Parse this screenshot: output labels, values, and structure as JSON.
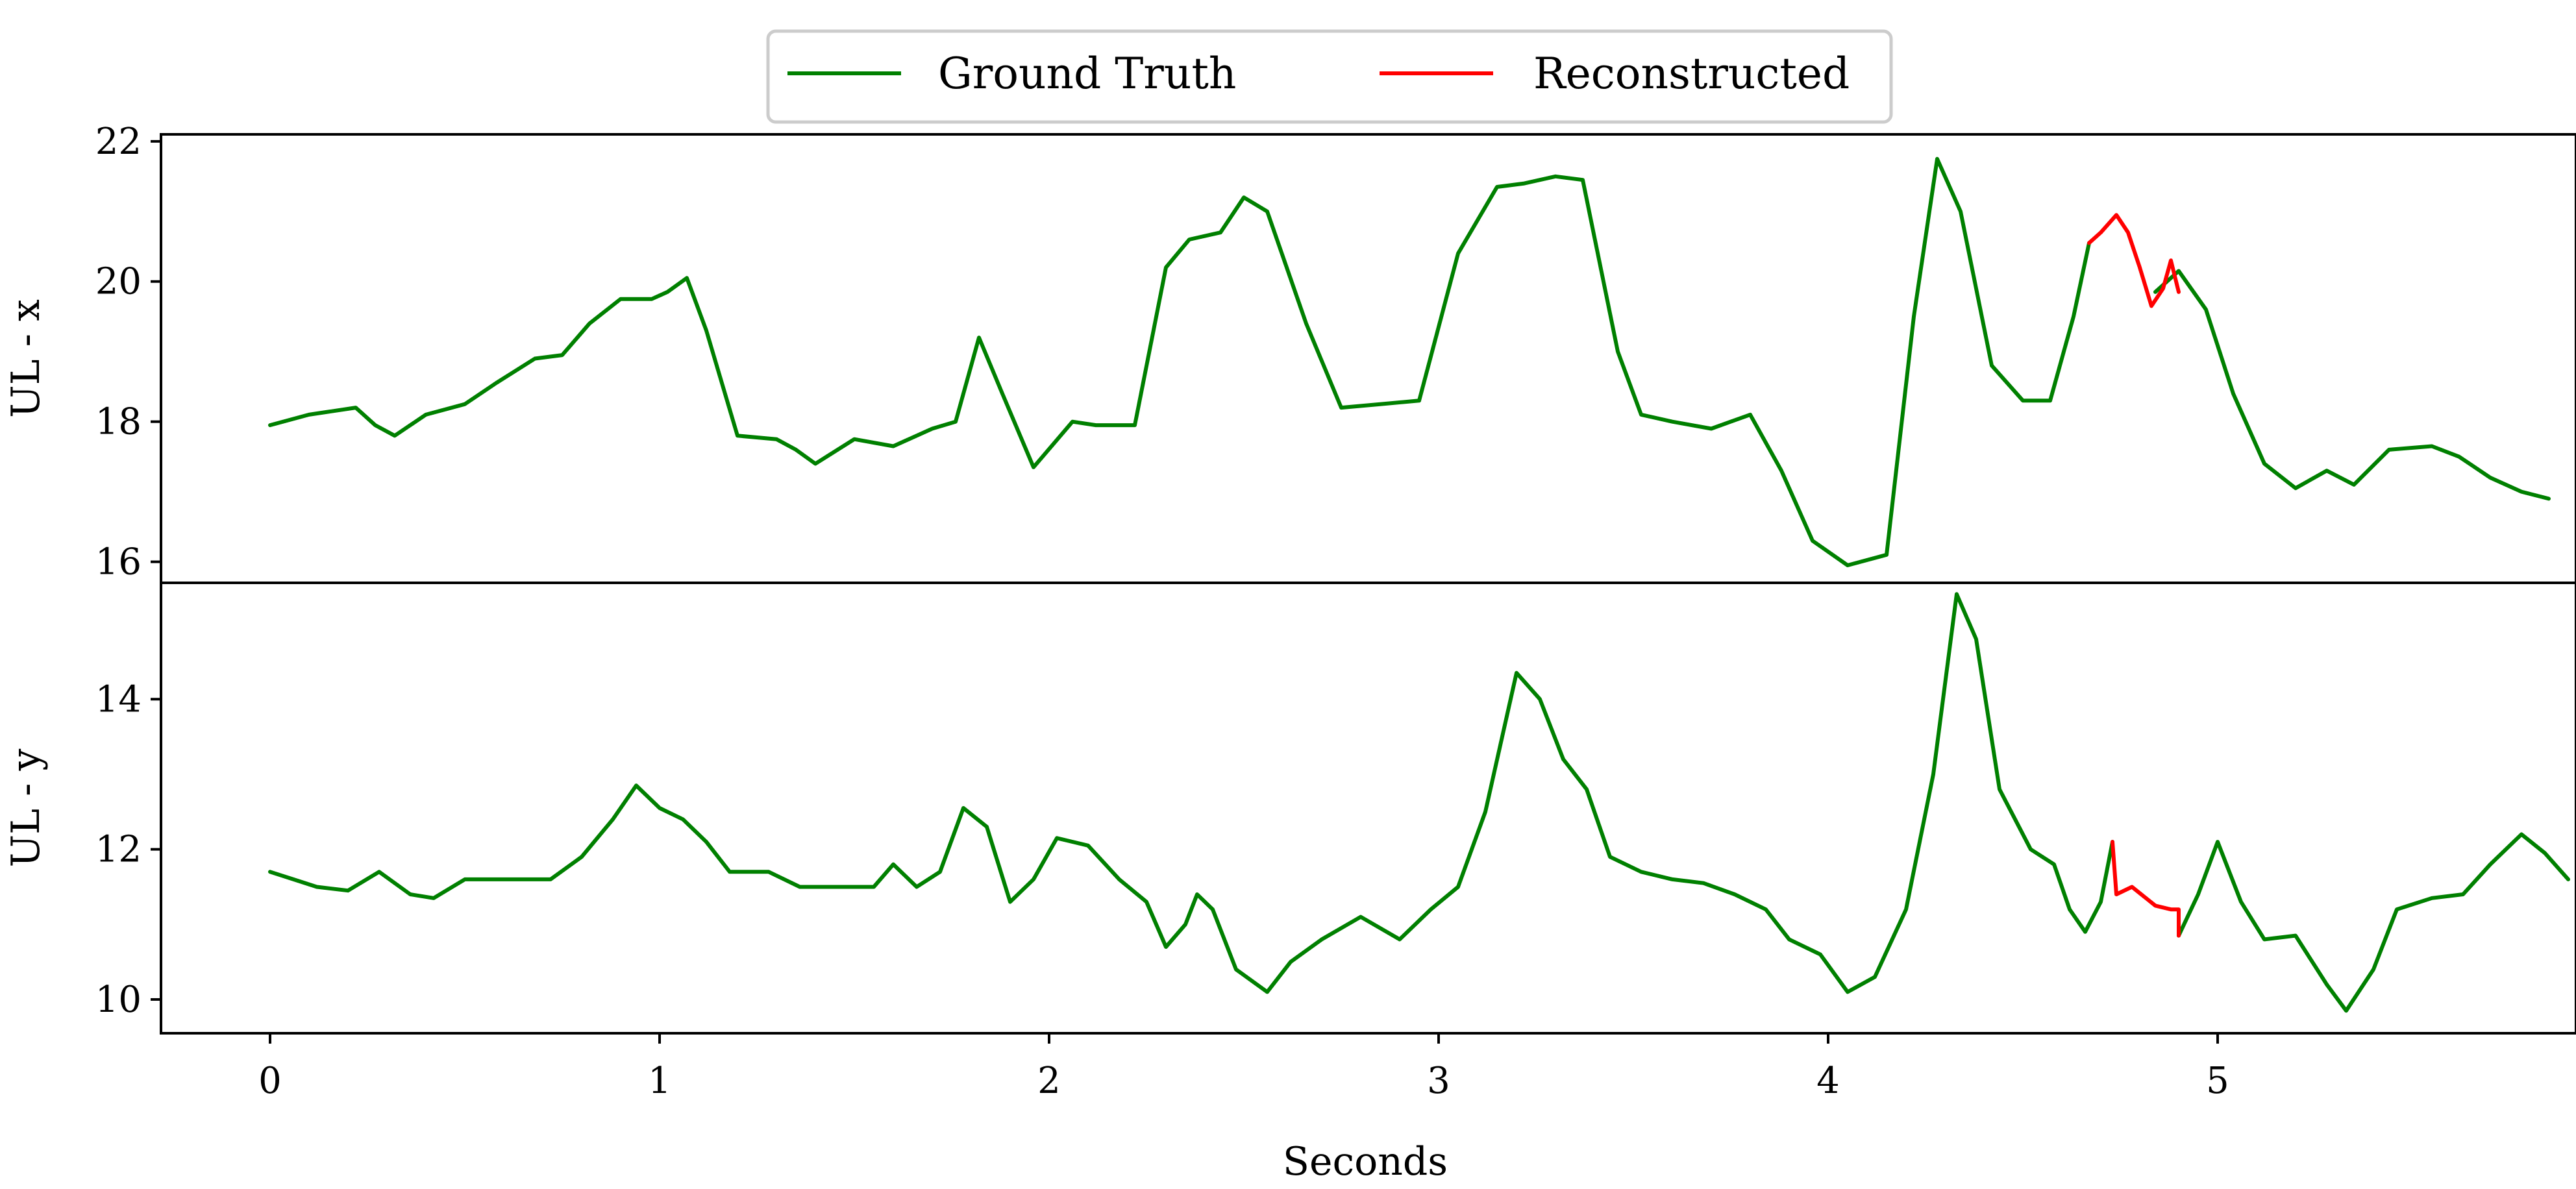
{
  "chart_data": {
    "type": "line",
    "xlabel": "Seconds",
    "xlim": [
      -0.28,
      5.92
    ],
    "xticks": [
      0,
      1,
      2,
      3,
      4,
      5
    ],
    "legend": {
      "placement": "top-center",
      "entries": [
        {
          "label": "Ground Truth",
          "color": "#008000"
        },
        {
          "label": "Reconstructed",
          "color": "#ff0000"
        }
      ]
    },
    "subplots": [
      {
        "ylabel": "UL - x",
        "ylim": [
          15.7,
          22.1
        ],
        "yticks": [
          16,
          18,
          20,
          22
        ],
        "series": [
          {
            "name": "Ground Truth",
            "color": "#008000",
            "segments": [
              [
                [
                  0,
                  17.95
                ],
                [
                  0.1,
                  18.1
                ],
                [
                  0.22,
                  18.2
                ],
                [
                  0.27,
                  17.95
                ],
                [
                  0.32,
                  17.8
                ],
                [
                  0.4,
                  18.1
                ],
                [
                  0.5,
                  18.25
                ],
                [
                  0.58,
                  18.55
                ],
                [
                  0.68,
                  18.9
                ],
                [
                  0.75,
                  18.95
                ],
                [
                  0.82,
                  19.4
                ],
                [
                  0.9,
                  19.75
                ],
                [
                  0.98,
                  19.75
                ],
                [
                  1.02,
                  19.85
                ],
                [
                  1.07,
                  20.05
                ],
                [
                  1.12,
                  19.3
                ],
                [
                  1.2,
                  17.8
                ],
                [
                  1.3,
                  17.75
                ],
                [
                  1.35,
                  17.6
                ],
                [
                  1.4,
                  17.4
                ],
                [
                  1.5,
                  17.75
                ],
                [
                  1.6,
                  17.65
                ],
                [
                  1.7,
                  17.9
                ],
                [
                  1.76,
                  18.0
                ],
                [
                  1.82,
                  19.2
                ],
                [
                  1.88,
                  18.4
                ],
                [
                  1.96,
                  17.35
                ],
                [
                  2.06,
                  18.0
                ],
                [
                  2.12,
                  17.95
                ],
                [
                  2.22,
                  17.95
                ],
                [
                  2.3,
                  20.2
                ],
                [
                  2.36,
                  20.6
                ],
                [
                  2.44,
                  20.7
                ],
                [
                  2.5,
                  21.2
                ],
                [
                  2.56,
                  21.0
                ],
                [
                  2.66,
                  19.4
                ],
                [
                  2.75,
                  18.2
                ],
                [
                  2.85,
                  18.25
                ],
                [
                  2.95,
                  18.3
                ],
                [
                  3.05,
                  20.4
                ],
                [
                  3.15,
                  21.35
                ],
                [
                  3.22,
                  21.4
                ],
                [
                  3.3,
                  21.5
                ],
                [
                  3.37,
                  21.45
                ],
                [
                  3.46,
                  19.0
                ],
                [
                  3.52,
                  18.1
                ],
                [
                  3.6,
                  18.0
                ],
                [
                  3.7,
                  17.9
                ],
                [
                  3.8,
                  18.1
                ],
                [
                  3.88,
                  17.3
                ],
                [
                  3.96,
                  16.3
                ],
                [
                  4.05,
                  15.95
                ],
                [
                  4.15,
                  16.1
                ],
                [
                  4.22,
                  19.5
                ],
                [
                  4.28,
                  21.75
                ],
                [
                  4.34,
                  21.0
                ],
                [
                  4.42,
                  18.8
                ],
                [
                  4.5,
                  18.3
                ],
                [
                  4.57,
                  18.3
                ],
                [
                  4.63,
                  19.5
                ],
                [
                  4.67,
                  20.55
                ]
              ],
              [
                [
                  4.84,
                  19.85
                ],
                [
                  4.9,
                  20.15
                ],
                [
                  4.97,
                  19.6
                ],
                [
                  5.04,
                  18.4
                ],
                [
                  5.12,
                  17.4
                ],
                [
                  5.2,
                  17.05
                ],
                [
                  5.28,
                  17.3
                ],
                [
                  5.35,
                  17.1
                ],
                [
                  5.44,
                  17.6
                ],
                [
                  5.55,
                  17.65
                ],
                [
                  5.62,
                  17.5
                ],
                [
                  5.7,
                  17.2
                ],
                [
                  5.78,
                  17.0
                ],
                [
                  5.85,
                  16.9
                ]
              ]
            ]
          },
          {
            "name": "Reconstructed",
            "color": "#ff0000",
            "segments": [
              [
                [
                  4.67,
                  20.55
                ],
                [
                  4.7,
                  20.7
                ],
                [
                  4.74,
                  20.95
                ],
                [
                  4.77,
                  20.7
                ],
                [
                  4.8,
                  20.2
                ],
                [
                  4.83,
                  19.65
                ],
                [
                  4.86,
                  19.9
                ],
                [
                  4.88,
                  20.3
                ],
                [
                  4.9,
                  19.85
                ]
              ]
            ]
          }
        ]
      },
      {
        "ylabel": "UL - y",
        "ylim": [
          9.55,
          15.55
        ],
        "yticks": [
          10,
          12,
          14
        ],
        "series": [
          {
            "name": "Ground Truth",
            "color": "#008000",
            "segments": [
              [
                [
                  0,
                  11.7
                ],
                [
                  0.06,
                  11.6
                ],
                [
                  0.12,
                  11.5
                ],
                [
                  0.2,
                  11.45
                ],
                [
                  0.28,
                  11.7
                ],
                [
                  0.36,
                  11.4
                ],
                [
                  0.42,
                  11.35
                ],
                [
                  0.5,
                  11.6
                ],
                [
                  0.6,
                  11.6
                ],
                [
                  0.72,
                  11.6
                ],
                [
                  0.8,
                  11.9
                ],
                [
                  0.88,
                  12.4
                ],
                [
                  0.94,
                  12.85
                ],
                [
                  1.0,
                  12.55
                ],
                [
                  1.06,
                  12.4
                ],
                [
                  1.12,
                  12.1
                ],
                [
                  1.18,
                  11.7
                ],
                [
                  1.28,
                  11.7
                ],
                [
                  1.36,
                  11.5
                ],
                [
                  1.45,
                  11.5
                ],
                [
                  1.55,
                  11.5
                ],
                [
                  1.6,
                  11.8
                ],
                [
                  1.66,
                  11.5
                ],
                [
                  1.72,
                  11.7
                ],
                [
                  1.78,
                  12.55
                ],
                [
                  1.84,
                  12.3
                ],
                [
                  1.9,
                  11.3
                ],
                [
                  1.96,
                  11.6
                ],
                [
                  2.02,
                  12.15
                ],
                [
                  2.1,
                  12.05
                ],
                [
                  2.18,
                  11.6
                ],
                [
                  2.25,
                  11.3
                ],
                [
                  2.3,
                  10.7
                ],
                [
                  2.35,
                  11.0
                ],
                [
                  2.38,
                  11.4
                ],
                [
                  2.42,
                  11.2
                ],
                [
                  2.48,
                  10.4
                ],
                [
                  2.56,
                  10.1
                ],
                [
                  2.62,
                  10.5
                ],
                [
                  2.7,
                  10.8
                ],
                [
                  2.8,
                  11.1
                ],
                [
                  2.9,
                  10.8
                ],
                [
                  2.98,
                  11.2
                ],
                [
                  3.05,
                  11.5
                ],
                [
                  3.12,
                  12.5
                ],
                [
                  3.2,
                  14.35
                ],
                [
                  3.26,
                  14.0
                ],
                [
                  3.32,
                  13.2
                ],
                [
                  3.38,
                  12.8
                ],
                [
                  3.44,
                  11.9
                ],
                [
                  3.52,
                  11.7
                ],
                [
                  3.6,
                  11.6
                ],
                [
                  3.68,
                  11.55
                ],
                [
                  3.76,
                  11.4
                ],
                [
                  3.84,
                  11.2
                ],
                [
                  3.9,
                  10.8
                ],
                [
                  3.98,
                  10.6
                ],
                [
                  4.05,
                  10.1
                ],
                [
                  4.12,
                  10.3
                ],
                [
                  4.2,
                  11.2
                ],
                [
                  4.27,
                  13.0
                ],
                [
                  4.33,
                  15.4
                ],
                [
                  4.38,
                  14.8
                ],
                [
                  4.44,
                  12.8
                ],
                [
                  4.52,
                  12.0
                ],
                [
                  4.58,
                  11.8
                ],
                [
                  4.62,
                  11.2
                ],
                [
                  4.66,
                  10.9
                ],
                [
                  4.7,
                  11.3
                ],
                [
                  4.73,
                  12.1
                ]
              ],
              [
                [
                  4.9,
                  10.85
                ],
                [
                  4.95,
                  11.4
                ],
                [
                  5.0,
                  12.1
                ],
                [
                  5.06,
                  11.3
                ],
                [
                  5.12,
                  10.8
                ],
                [
                  5.2,
                  10.85
                ],
                [
                  5.28,
                  10.2
                ],
                [
                  5.33,
                  9.85
                ],
                [
                  5.4,
                  10.4
                ],
                [
                  5.46,
                  11.2
                ],
                [
                  5.55,
                  11.35
                ],
                [
                  5.63,
                  11.4
                ],
                [
                  5.7,
                  11.8
                ],
                [
                  5.78,
                  12.2
                ],
                [
                  5.84,
                  11.95
                ],
                [
                  5.9,
                  11.6
                ]
              ]
            ]
          },
          {
            "name": "Reconstructed",
            "color": "#ff0000",
            "segments": [
              [
                [
                  4.73,
                  12.1
                ],
                [
                  4.74,
                  11.4
                ],
                [
                  4.78,
                  11.5
                ],
                [
                  4.84,
                  11.25
                ],
                [
                  4.88,
                  11.2
                ],
                [
                  4.9,
                  11.2
                ],
                [
                  4.9,
                  10.85
                ]
              ]
            ]
          }
        ]
      }
    ]
  }
}
